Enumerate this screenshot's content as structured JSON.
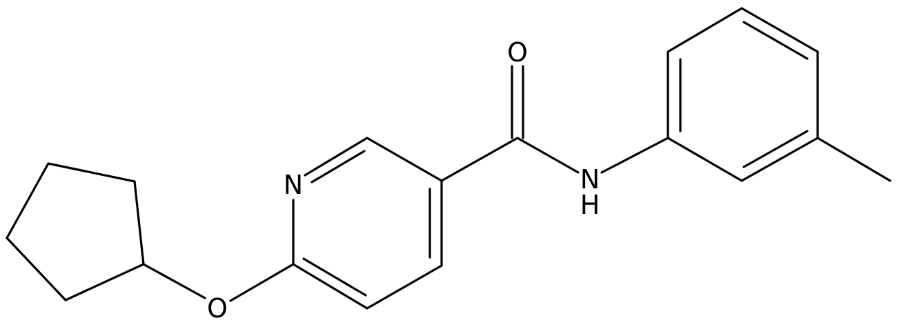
{
  "atoms": {
    "carbonyl_oxygen": "O",
    "pyridine_nitrogen": "N",
    "amide_nitrogen": "N",
    "amide_hydrogen": "H",
    "ether_oxygen": "O"
  }
}
